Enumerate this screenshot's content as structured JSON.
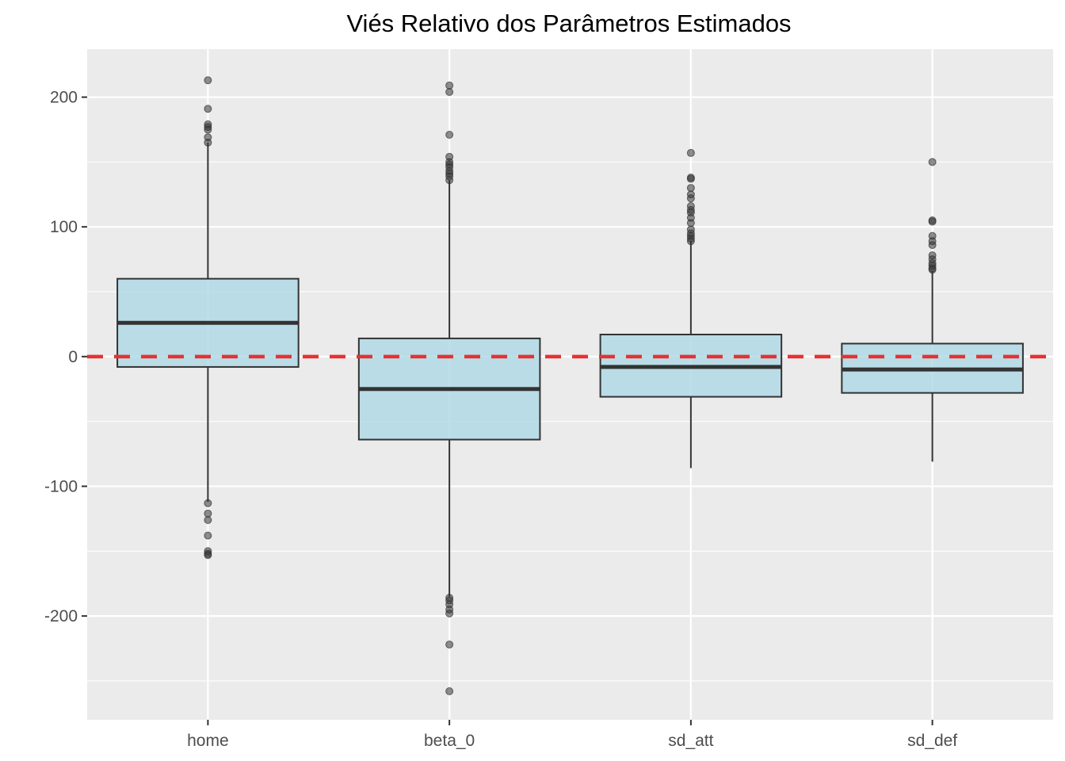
{
  "chart_data": {
    "type": "boxplot",
    "title": "Viés Relativo dos Parâmetros Estimados",
    "xlabel": "",
    "ylabel": "",
    "categories": [
      "home",
      "beta_0",
      "sd_att",
      "sd_def"
    ],
    "boxes": [
      {
        "name": "home",
        "whisker_low": -112,
        "q1": -8,
        "median": 26,
        "q3": 60,
        "whisker_high": 165,
        "outliers": [
          213,
          191,
          179,
          177,
          175,
          169,
          165,
          -113,
          -121,
          -126,
          -138,
          -150,
          -152,
          -153
        ]
      },
      {
        "name": "beta_0",
        "whisker_low": -185,
        "q1": -64,
        "median": -25,
        "q3": 14,
        "whisker_high": 136,
        "outliers": [
          209,
          204,
          171,
          154,
          150,
          148,
          146,
          143,
          141,
          139,
          136,
          -186,
          -188,
          -191,
          -195,
          -198,
          -222,
          -258
        ]
      },
      {
        "name": "sd_att",
        "whisker_low": -86,
        "q1": -31,
        "median": -8,
        "q3": 17,
        "whisker_high": 89,
        "outliers": [
          157,
          138,
          137,
          130,
          125,
          122,
          116,
          113,
          111,
          107,
          103,
          98,
          95,
          93,
          91,
          89
        ]
      },
      {
        "name": "sd_def",
        "whisker_low": -81,
        "q1": -28,
        "median": -10,
        "q3": 10,
        "whisker_high": 66,
        "outliers": [
          150,
          105,
          104,
          93,
          89,
          86,
          78,
          75,
          72,
          70,
          68,
          67
        ]
      }
    ],
    "reference_line": {
      "y": 0,
      "color": "#e8312f",
      "style": "dashed"
    },
    "ylim": [
      -280,
      237
    ],
    "yticks": [
      -200,
      -100,
      0,
      100,
      200
    ],
    "grid": true,
    "colors": {
      "panel_background": "#ebebeb",
      "grid": "#ffffff",
      "box_fill": "#add8e6",
      "box_stroke": "#333333",
      "outlier": "#333333"
    }
  }
}
